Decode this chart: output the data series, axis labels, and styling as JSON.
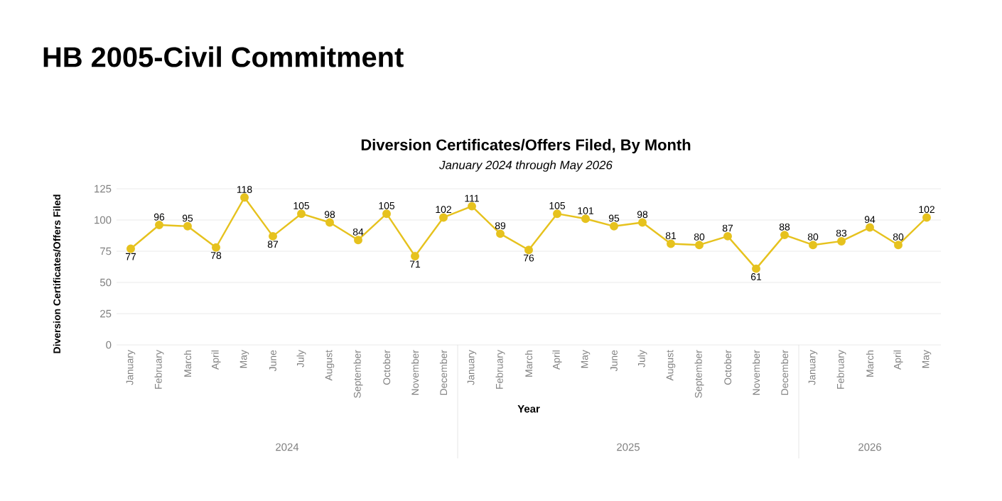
{
  "chart_data": {
    "type": "line",
    "title": "Diversion Certificates/Offers Filed, By Month",
    "subtitle": "January 2024 through May 2026",
    "xlabel": "Year",
    "ylabel": "Diversion Certificates/Offers Filed",
    "categories": [
      "January",
      "February",
      "March",
      "April",
      "May",
      "June",
      "July",
      "August",
      "September",
      "October",
      "November",
      "December",
      "January",
      "February",
      "March",
      "April",
      "May",
      "June",
      "July",
      "August",
      "September",
      "October",
      "November",
      "December",
      "January",
      "February",
      "March",
      "April",
      "May"
    ],
    "values": [
      77,
      96,
      95,
      78,
      118,
      87,
      105,
      98,
      84,
      105,
      71,
      102,
      111,
      89,
      76,
      105,
      101,
      95,
      98,
      81,
      80,
      87,
      61,
      88,
      80,
      83,
      94,
      80,
      102
    ],
    "color": "#e6c21e",
    "marker": "circle",
    "line_style": "solid",
    "grid": "y",
    "data_labels": true,
    "ylim": [
      0,
      125
    ],
    "yticks": [
      0,
      25,
      50,
      75,
      100,
      125
    ],
    "annotations": [
      "HB 2005-Civil Commitment",
      "2024",
      "2025",
      "2026"
    ]
  }
}
